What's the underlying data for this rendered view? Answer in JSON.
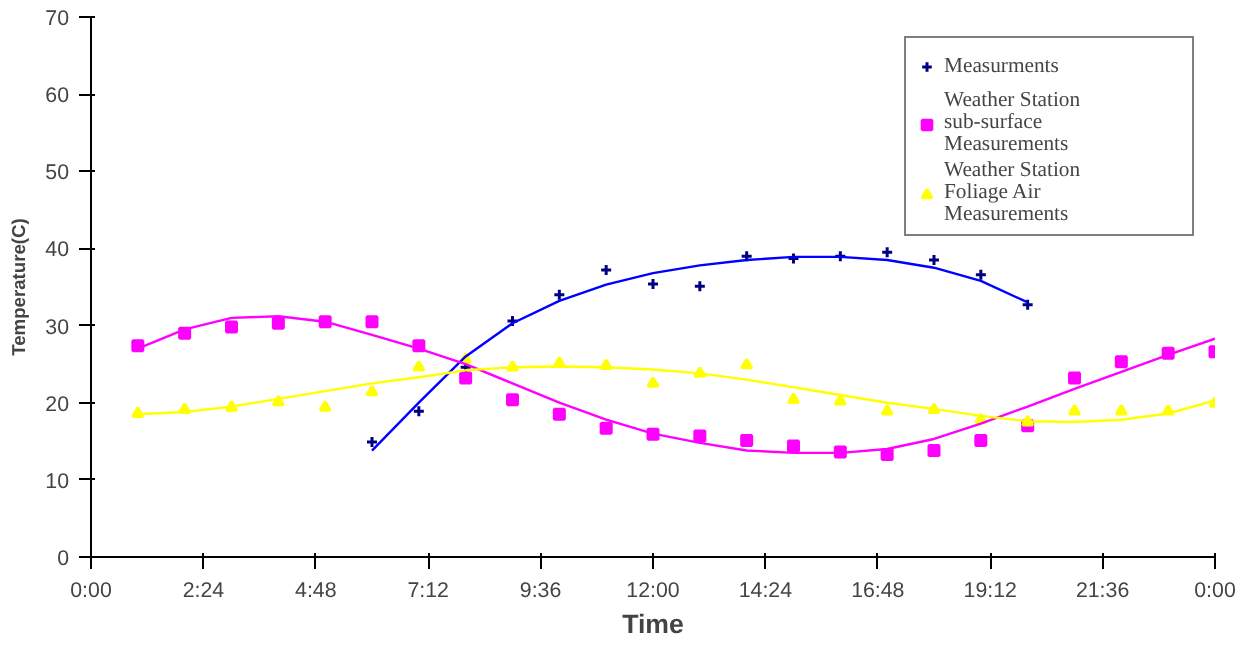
{
  "chart_data": {
    "type": "scatter",
    "xlabel": "Time",
    "ylabel": "Temperature(C)",
    "x": [
      1,
      2,
      3,
      4,
      5,
      6,
      7,
      8,
      9,
      10,
      11,
      12,
      13,
      14,
      15,
      16,
      17,
      18,
      19,
      20,
      21,
      22,
      23,
      24
    ],
    "series": [
      {
        "name": "Measurments",
        "color": "#000080",
        "marker": "cross",
        "x": [
          6,
          7,
          8,
          9,
          10,
          11,
          12,
          13,
          14,
          15,
          16,
          17,
          18,
          19,
          20
        ],
        "values": [
          14.9,
          18.9,
          24.6,
          30.6,
          34.0,
          37.2,
          35.4,
          35.1,
          39.0,
          38.7,
          39.0,
          39.5,
          38.5,
          36.6,
          32.7
        ]
      },
      {
        "name": "Weather Station sub-surface Measurements",
        "color": "#ff00ff",
        "marker": "square",
        "values": [
          27.4,
          29.0,
          29.8,
          30.3,
          30.5,
          30.5,
          27.4,
          23.2,
          20.4,
          18.5,
          16.7,
          15.9,
          15.7,
          15.1,
          14.4,
          13.6,
          13.3,
          13.8,
          15.1,
          17.0,
          23.2,
          25.3,
          26.4,
          26.6
        ]
      },
      {
        "name": "Weather Station Foliage Air Measurements",
        "color": "#ffff00",
        "marker": "triangle",
        "values": [
          18.6,
          19.1,
          19.4,
          20.1,
          19.4,
          21.4,
          24.6,
          25.6,
          24.6,
          25.1,
          24.8,
          22.5,
          23.8,
          24.9,
          20.4,
          20.2,
          18.9,
          19.1,
          17.8,
          17.5,
          18.9,
          18.9,
          18.9,
          19.9
        ]
      },
      {
        "type": "line",
        "color": "#0000ff",
        "x": [
          6,
          7,
          8,
          9,
          10,
          11,
          12,
          13,
          14,
          15,
          16,
          17,
          18,
          19,
          20
        ],
        "values": [
          13.8,
          20,
          26,
          30.3,
          33.2,
          35.3,
          36.8,
          37.8,
          38.5,
          38.9,
          38.9,
          38.5,
          37.5,
          35.8,
          33
        ]
      },
      {
        "type": "line",
        "color": "#ff00ff",
        "values": [
          27,
          29.5,
          31,
          31.2,
          30.5,
          28.8,
          27,
          25,
          22.5,
          20,
          17.8,
          16,
          14.8,
          13.8,
          13.5,
          13.5,
          14,
          15.3,
          17.3,
          19.5,
          21.8,
          24,
          26.2,
          28.3
        ]
      },
      {
        "type": "line",
        "color": "#ffff00",
        "values": [
          18.5,
          18.8,
          19.5,
          20.5,
          21.5,
          22.5,
          23.3,
          24.2,
          24.6,
          24.7,
          24.6,
          24.3,
          23.8,
          23,
          22,
          21,
          20,
          19.2,
          18.3,
          17.6,
          17.5,
          17.8,
          18.6,
          20.3
        ]
      }
    ],
    "xlim": [
      0,
      24
    ],
    "ylim": [
      0,
      70
    ],
    "xticks": [
      {
        "value": 0,
        "label": "0:00"
      },
      {
        "value": 2.4,
        "label": "2:24"
      },
      {
        "value": 4.8,
        "label": "4:48"
      },
      {
        "value": 7.2,
        "label": "7:12"
      },
      {
        "value": 9.6,
        "label": "9:36"
      },
      {
        "value": 12,
        "label": "12:00"
      },
      {
        "value": 14.4,
        "label": "14:24"
      },
      {
        "value": 16.8,
        "label": "16:48"
      },
      {
        "value": 19.2,
        "label": "19:12"
      },
      {
        "value": 21.6,
        "label": "21:36"
      },
      {
        "value": 24,
        "label": "0:00"
      }
    ],
    "yticks": [
      0,
      10,
      20,
      30,
      40,
      50,
      60,
      70
    ],
    "grid": false,
    "legend": "top right"
  }
}
